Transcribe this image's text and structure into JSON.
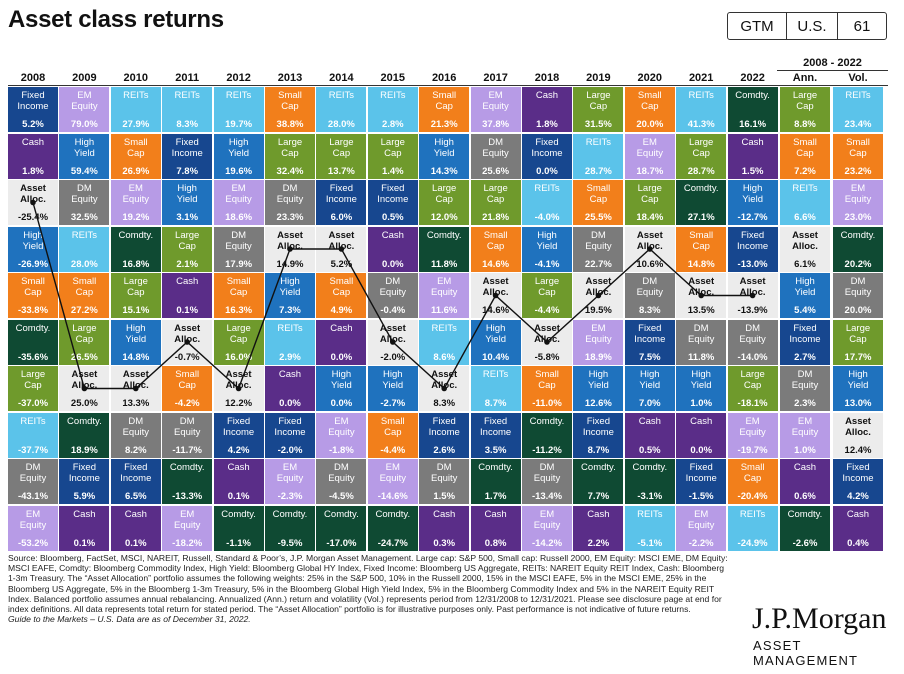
{
  "header": {
    "title": "Asset class returns",
    "badges": [
      "GTM",
      "U.S.",
      "61"
    ]
  },
  "summary_header": "2008 - 2022",
  "summary_columns": [
    "Ann.",
    "Vol."
  ],
  "asset_colors": {
    "Fixed Income": "#17478f",
    "EM Equity": "#b79be6",
    "REITs": "#5bc3ea",
    "Small Cap": "#f27f1b",
    "Cash": "#5a2d88",
    "Large Cap": "#6f9a2c",
    "Comdty.": "#0f4a33",
    "High Yield": "#1f72be",
    "DM Equity": "#7b7b7b",
    "Asset Alloc.": "#ececec"
  },
  "chart_data": {
    "type": "table",
    "years": [
      "2008",
      "2009",
      "2010",
      "2011",
      "2012",
      "2013",
      "2014",
      "2015",
      "2016",
      "2017",
      "2018",
      "2019",
      "2020",
      "2021",
      "2022"
    ],
    "columns": [
      [
        [
          "Fixed Income",
          "5.2%"
        ],
        [
          "Cash",
          "1.8%"
        ],
        [
          "Asset Alloc.",
          "-25.4%"
        ],
        [
          "High Yield",
          "-26.9%"
        ],
        [
          "Small Cap",
          "-33.8%"
        ],
        [
          "Comdty.",
          "-35.6%"
        ],
        [
          "Large Cap",
          "-37.0%"
        ],
        [
          "REITs",
          "-37.7%"
        ],
        [
          "DM Equity",
          "-43.1%"
        ],
        [
          "EM Equity",
          "-53.2%"
        ]
      ],
      [
        [
          "EM Equity",
          "79.0%"
        ],
        [
          "High Yield",
          "59.4%"
        ],
        [
          "DM Equity",
          "32.5%"
        ],
        [
          "REITs",
          "28.0%"
        ],
        [
          "Small Cap",
          "27.2%"
        ],
        [
          "Large Cap",
          "26.5%"
        ],
        [
          "Asset Alloc.",
          "25.0%"
        ],
        [
          "Comdty.",
          "18.9%"
        ],
        [
          "Fixed Income",
          "5.9%"
        ],
        [
          "Cash",
          "0.1%"
        ]
      ],
      [
        [
          "REITs",
          "27.9%"
        ],
        [
          "Small Cap",
          "26.9%"
        ],
        [
          "EM Equity",
          "19.2%"
        ],
        [
          "Comdty.",
          "16.8%"
        ],
        [
          "Large Cap",
          "15.1%"
        ],
        [
          "High Yield",
          "14.8%"
        ],
        [
          "Asset Alloc.",
          "13.3%"
        ],
        [
          "DM Equity",
          "8.2%"
        ],
        [
          "Fixed Income",
          "6.5%"
        ],
        [
          "Cash",
          "0.1%"
        ]
      ],
      [
        [
          "REITs",
          "8.3%"
        ],
        [
          "Fixed Income",
          "7.8%"
        ],
        [
          "High Yield",
          "3.1%"
        ],
        [
          "Large Cap",
          "2.1%"
        ],
        [
          "Cash",
          "0.1%"
        ],
        [
          "Asset Alloc.",
          "-0.7%"
        ],
        [
          "Small Cap",
          "-4.2%"
        ],
        [
          "DM Equity",
          "-11.7%"
        ],
        [
          "Comdty.",
          "-13.3%"
        ],
        [
          "EM Equity",
          "-18.2%"
        ]
      ],
      [
        [
          "REITs",
          "19.7%"
        ],
        [
          "High Yield",
          "19.6%"
        ],
        [
          "EM Equity",
          "18.6%"
        ],
        [
          "DM Equity",
          "17.9%"
        ],
        [
          "Small Cap",
          "16.3%"
        ],
        [
          "Large Cap",
          "16.0%"
        ],
        [
          "Asset Alloc.",
          "12.2%"
        ],
        [
          "Fixed Income",
          "4.2%"
        ],
        [
          "Cash",
          "0.1%"
        ],
        [
          "Comdty.",
          "-1.1%"
        ]
      ],
      [
        [
          "Small Cap",
          "38.8%"
        ],
        [
          "Large Cap",
          "32.4%"
        ],
        [
          "DM Equity",
          "23.3%"
        ],
        [
          "Asset Alloc.",
          "14.9%"
        ],
        [
          "High Yield",
          "7.3%"
        ],
        [
          "REITs",
          "2.9%"
        ],
        [
          "Cash",
          "0.0%"
        ],
        [
          "Fixed Income",
          "-2.0%"
        ],
        [
          "EM Equity",
          "-2.3%"
        ],
        [
          "Comdty.",
          "-9.5%"
        ]
      ],
      [
        [
          "REITs",
          "28.0%"
        ],
        [
          "Large Cap",
          "13.7%"
        ],
        [
          "Fixed Income",
          "6.0%"
        ],
        [
          "Asset Alloc.",
          "5.2%"
        ],
        [
          "Small Cap",
          "4.9%"
        ],
        [
          "Cash",
          "0.0%"
        ],
        [
          "High Yield",
          "0.0%"
        ],
        [
          "EM Equity",
          "-1.8%"
        ],
        [
          "DM Equity",
          "-4.5%"
        ],
        [
          "Comdty.",
          "-17.0%"
        ]
      ],
      [
        [
          "REITs",
          "2.8%"
        ],
        [
          "Large Cap",
          "1.4%"
        ],
        [
          "Fixed Income",
          "0.5%"
        ],
        [
          "Cash",
          "0.0%"
        ],
        [
          "DM Equity",
          "-0.4%"
        ],
        [
          "Asset Alloc.",
          "-2.0%"
        ],
        [
          "High Yield",
          "-2.7%"
        ],
        [
          "Small Cap",
          "-4.4%"
        ],
        [
          "EM Equity",
          "-14.6%"
        ],
        [
          "Comdty.",
          "-24.7%"
        ]
      ],
      [
        [
          "Small Cap",
          "21.3%"
        ],
        [
          "High Yield",
          "14.3%"
        ],
        [
          "Large Cap",
          "12.0%"
        ],
        [
          "Comdty.",
          "11.8%"
        ],
        [
          "EM Equity",
          "11.6%"
        ],
        [
          "REITs",
          "8.6%"
        ],
        [
          "Asset Alloc.",
          "8.3%"
        ],
        [
          "Fixed Income",
          "2.6%"
        ],
        [
          "DM Equity",
          "1.5%"
        ],
        [
          "Cash",
          "0.3%"
        ]
      ],
      [
        [
          "EM Equity",
          "37.8%"
        ],
        [
          "DM Equity",
          "25.6%"
        ],
        [
          "Large Cap",
          "21.8%"
        ],
        [
          "Small Cap",
          "14.6%"
        ],
        [
          "Asset Alloc.",
          "14.6%"
        ],
        [
          "High Yield",
          "10.4%"
        ],
        [
          "REITs",
          "8.7%"
        ],
        [
          "Fixed Income",
          "3.5%"
        ],
        [
          "Comdty.",
          "1.7%"
        ],
        [
          "Cash",
          "0.8%"
        ]
      ],
      [
        [
          "Cash",
          "1.8%"
        ],
        [
          "Fixed Income",
          "0.0%"
        ],
        [
          "REITs",
          "-4.0%"
        ],
        [
          "High Yield",
          "-4.1%"
        ],
        [
          "Large Cap",
          "-4.4%"
        ],
        [
          "Asset Alloc.",
          "-5.8%"
        ],
        [
          "Small Cap",
          "-11.0%"
        ],
        [
          "Comdty.",
          "-11.2%"
        ],
        [
          "DM Equity",
          "-13.4%"
        ],
        [
          "EM Equity",
          "-14.2%"
        ]
      ],
      [
        [
          "Large Cap",
          "31.5%"
        ],
        [
          "REITs",
          "28.7%"
        ],
        [
          "Small Cap",
          "25.5%"
        ],
        [
          "DM Equity",
          "22.7%"
        ],
        [
          "Asset Alloc.",
          "19.5%"
        ],
        [
          "EM Equity",
          "18.9%"
        ],
        [
          "High Yield",
          "12.6%"
        ],
        [
          "Fixed Income",
          "8.7%"
        ],
        [
          "Comdty.",
          "7.7%"
        ],
        [
          "Cash",
          "2.2%"
        ]
      ],
      [
        [
          "Small Cap",
          "20.0%"
        ],
        [
          "EM Equity",
          "18.7%"
        ],
        [
          "Large Cap",
          "18.4%"
        ],
        [
          "Asset Alloc.",
          "10.6%"
        ],
        [
          "DM Equity",
          "8.3%"
        ],
        [
          "Fixed Income",
          "7.5%"
        ],
        [
          "High Yield",
          "7.0%"
        ],
        [
          "Cash",
          "0.5%"
        ],
        [
          "Comdty.",
          "-3.1%"
        ],
        [
          "REITs",
          "-5.1%"
        ]
      ],
      [
        [
          "REITs",
          "41.3%"
        ],
        [
          "Large Cap",
          "28.7%"
        ],
        [
          "Comdty.",
          "27.1%"
        ],
        [
          "Small Cap",
          "14.8%"
        ],
        [
          "Asset Alloc.",
          "13.5%"
        ],
        [
          "DM Equity",
          "11.8%"
        ],
        [
          "High Yield",
          "1.0%"
        ],
        [
          "Cash",
          "0.0%"
        ],
        [
          "Fixed Income",
          "-1.5%"
        ],
        [
          "EM Equity",
          "-2.2%"
        ]
      ],
      [
        [
          "Comdty.",
          "16.1%"
        ],
        [
          "Cash",
          "1.5%"
        ],
        [
          "High Yield",
          "-12.7%"
        ],
        [
          "Fixed Income",
          "-13.0%"
        ],
        [
          "Asset Alloc.",
          "-13.9%"
        ],
        [
          "DM Equity",
          "-14.0%"
        ],
        [
          "Large Cap",
          "-18.1%"
        ],
        [
          "EM Equity",
          "-19.7%"
        ],
        [
          "Small Cap",
          "-20.4%"
        ],
        [
          "REITs",
          "-24.9%"
        ]
      ]
    ],
    "summary": [
      [
        [
          "Large Cap",
          "8.8%"
        ],
        [
          "REITs",
          "23.4%"
        ]
      ],
      [
        [
          "Small Cap",
          "7.2%"
        ],
        [
          "Small Cap",
          "23.2%"
        ]
      ],
      [
        [
          "REITs",
          "6.6%"
        ],
        [
          "EM Equity",
          "23.0%"
        ]
      ],
      [
        [
          "Asset Alloc.",
          "6.1%"
        ],
        [
          "Comdty.",
          "20.2%"
        ]
      ],
      [
        [
          "High Yield",
          "5.4%"
        ],
        [
          "DM Equity",
          "20.0%"
        ]
      ],
      [
        [
          "Fixed Income",
          "2.7%"
        ],
        [
          "Large Cap",
          "17.7%"
        ]
      ],
      [
        [
          "DM Equity",
          "2.3%"
        ],
        [
          "High Yield",
          "13.0%"
        ]
      ],
      [
        [
          "EM Equity",
          "1.0%"
        ],
        [
          "Asset Alloc.",
          "12.4%"
        ]
      ],
      [
        [
          "Cash",
          "0.6%"
        ],
        [
          "Fixed Income",
          "4.2%"
        ]
      ],
      [
        [
          "Comdty.",
          "-2.6%"
        ],
        [
          "Cash",
          "0.4%"
        ]
      ]
    ]
  },
  "footnote": {
    "text": "Source: Bloomberg, FactSet, MSCI, NAREIT, Russell, Standard & Poor’s, J.P. Morgan Asset Management. Large cap: S&P 500, Small cap: Russell 2000, EM Equity: MSCI EME, DM Equity: MSCI EAFE, Comdty: Bloomberg Commodity Index, High Yield: Bloomberg Global HY Index, Fixed Income: Bloomberg US Aggregate, REITs: NAREIT Equity REIT Index, Cash: Bloomberg 1-3m Treasury. The “Asset Allocation” portfolio assumes the following weights: 25% in the S&P 500, 10% in the Russell 2000, 15% in the MSCI EAFE, 5% in the MSCI EME, 25% in the Bloomberg US Aggregate, 5% in the Bloomberg 1-3m Treasury, 5% in the Bloomberg Global High Yield Index, 5% in the Bloomberg Commodity Index and 5% in the NAREIT Equity REIT Index. Balanced portfolio assumes annual rebalancing. Annualized (Ann.) return and volatility (Vol.) represents period from 12/31/2008 to 12/31/2021. Please see disclosure page at end for index definitions. All data represents total return for stated period. The “Asset Allocation” portfolio is for illustrative purposes only. Past performance is not indicative of future returns.",
    "guide": "Guide to the Markets – U.S. Data are as of December 31, 2022."
  },
  "logo": {
    "name": "J.P.Morgan",
    "sub": "ASSET MANAGEMENT"
  }
}
